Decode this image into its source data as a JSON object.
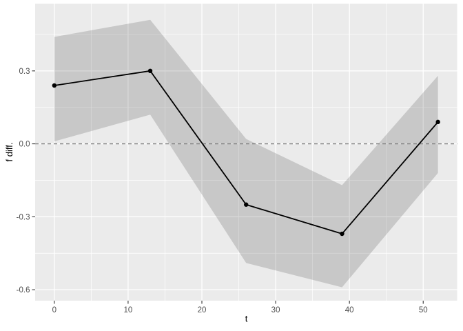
{
  "chart_data": {
    "type": "line",
    "title": "",
    "xlabel": "t",
    "ylabel": "f diff.",
    "x": [
      0,
      13,
      26,
      39,
      52
    ],
    "series": [
      {
        "name": "f diff.",
        "values": [
          0.24,
          0.3,
          -0.25,
          -0.37,
          0.09
        ]
      }
    ],
    "ribbon": {
      "upper": [
        0.44,
        0.51,
        0.02,
        -0.17,
        0.28
      ],
      "lower": [
        0.01,
        0.12,
        -0.49,
        -0.59,
        -0.12
      ]
    },
    "hline": {
      "y": 0,
      "linetype": "dashed"
    },
    "x_ticks": [
      0,
      10,
      20,
      30,
      40,
      50
    ],
    "x_tick_labels": [
      "0",
      "10",
      "20",
      "30",
      "40",
      "50"
    ],
    "x_minor": [
      5,
      15,
      25,
      35,
      45
    ],
    "y_ticks": [
      0.3,
      0.0,
      -0.3,
      -0.6
    ],
    "y_tick_labels": [
      "0.3",
      "0.0",
      "-0.3",
      "-0.6"
    ],
    "y_minor": [
      0.45,
      0.15,
      -0.15,
      -0.45
    ],
    "xlim": [
      -2.6,
      54.6
    ],
    "ylim": [
      -0.645,
      0.576
    ],
    "grid": "major-minor-white",
    "legend": "none"
  },
  "colors": {
    "figure_background": "#ffffff",
    "panel_background": "#ebebeb",
    "gridline": "#ffffff",
    "ribbon_fill": "rgba(0,0,0,0.15)",
    "hline": "#7d7d7d",
    "line": "#000000",
    "point": "#000000",
    "tick_mark": "#333333",
    "tick_label": "#4d4d4d",
    "axis_title": "#000000"
  }
}
